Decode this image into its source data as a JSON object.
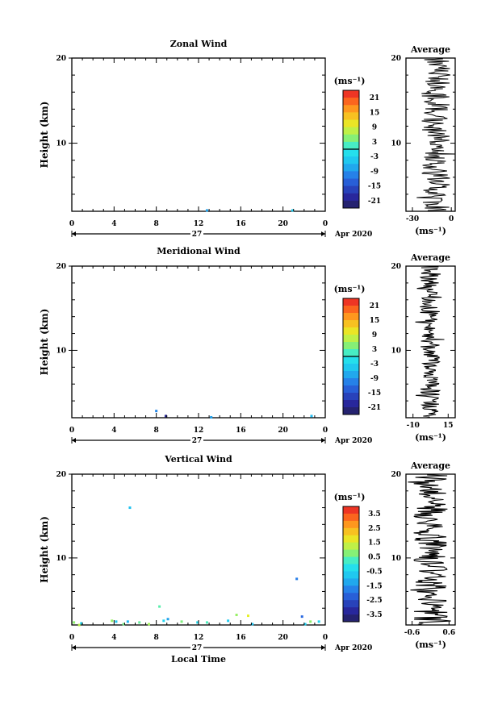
{
  "chart_data": [
    {
      "type": "heatmap",
      "title": "Zonal Wind",
      "ylabel": "Height (km)",
      "xlabel": "",
      "ylim": [
        2,
        20
      ],
      "xlim": [
        0,
        24
      ],
      "x_ticks": [
        "0",
        "4",
        "8",
        "12",
        "16",
        "20",
        "0"
      ],
      "y_ticks": [
        "10",
        "20"
      ],
      "day_label": "27",
      "date_label": "Apr 2020",
      "colorbar": {
        "unit": "(ms⁻¹)",
        "ticks": [
          "21",
          "15",
          "9",
          "3",
          "-3",
          "-9",
          "-15",
          "-21"
        ],
        "range": [
          -24,
          24
        ],
        "zero_line": true
      },
      "cells": [
        {
          "t": 12.8,
          "h": 2.1,
          "v": -8
        },
        {
          "t": 20.9,
          "h": 2.1,
          "v": -4
        }
      ],
      "profile": {
        "title": "Average",
        "x_ticks": [
          "-30",
          "0"
        ],
        "xlim": [
          -35,
          3
        ],
        "xlabel": "(ms⁻¹)",
        "y_ticks": [
          "10",
          "20"
        ],
        "ylim": [
          2,
          20
        ],
        "mean": -12,
        "amplitude": 11
      }
    },
    {
      "type": "heatmap",
      "title": "Meridional Wind",
      "ylabel": "Height (km)",
      "xlabel": "",
      "ylim": [
        2,
        20
      ],
      "xlim": [
        0,
        24
      ],
      "x_ticks": [
        "0",
        "4",
        "8",
        "12",
        "16",
        "20",
        "0"
      ],
      "y_ticks": [
        "10",
        "20"
      ],
      "day_label": "27",
      "date_label": "Apr 2020",
      "colorbar": {
        "unit": "(ms⁻¹)",
        "ticks": [
          "21",
          "15",
          "9",
          "3",
          "-3",
          "-9",
          "-15",
          "-21"
        ],
        "range": [
          -24,
          24
        ],
        "zero_line": true
      },
      "cells": [
        {
          "t": 8.0,
          "h": 2.8,
          "v": -10
        },
        {
          "t": 8.9,
          "h": 2.2,
          "v": -20
        },
        {
          "t": 13.2,
          "h": 2.05,
          "v": -8
        },
        {
          "t": 22.7,
          "h": 2.2,
          "v": -6
        }
      ],
      "profile": {
        "title": "Average",
        "x_ticks": [
          "-10",
          "15"
        ],
        "xlim": [
          -15,
          20
        ],
        "xlabel": "(ms⁻¹)",
        "y_ticks": [
          "10",
          "20"
        ],
        "ylim": [
          2,
          20
        ],
        "mean": 2,
        "amplitude": 7
      }
    },
    {
      "type": "heatmap",
      "title": "Vertical Wind",
      "ylabel": "Height (km)",
      "xlabel": "Local Time",
      "ylim": [
        2,
        20
      ],
      "xlim": [
        0,
        24
      ],
      "x_ticks": [
        "0",
        "4",
        "8",
        "12",
        "16",
        "20",
        "0"
      ],
      "y_ticks": [
        "10",
        "20"
      ],
      "day_label": "27",
      "date_label": "Apr 2020",
      "colorbar": {
        "unit": "(ms⁻¹)",
        "ticks": [
          "3.5",
          "2.5",
          "1.5",
          "0.5",
          "-0.5",
          "-1.5",
          "-2.5",
          "-3.5"
        ],
        "range": [
          -4,
          4
        ],
        "zero_line": false
      },
      "cells": [
        {
          "t": 0.2,
          "h": 2.3,
          "v": 0.8
        },
        {
          "t": 0.7,
          "h": 2.0,
          "v": 1.2
        },
        {
          "t": 0.9,
          "h": 2.2,
          "v": -0.6
        },
        {
          "t": 3.8,
          "h": 2.5,
          "v": 0.9
        },
        {
          "t": 4.2,
          "h": 2.4,
          "v": -0.8
        },
        {
          "t": 4.9,
          "h": 2.1,
          "v": 0.6
        },
        {
          "t": 5.3,
          "h": 2.4,
          "v": -1.1
        },
        {
          "t": 5.5,
          "h": 16.0,
          "v": -0.9
        },
        {
          "t": 6.4,
          "h": 2.3,
          "v": 0.5
        },
        {
          "t": 7.3,
          "h": 2.1,
          "v": 1.0
        },
        {
          "t": 8.3,
          "h": 4.2,
          "v": 0.4
        },
        {
          "t": 8.7,
          "h": 2.5,
          "v": -0.5
        },
        {
          "t": 9.1,
          "h": 2.7,
          "v": -1.3
        },
        {
          "t": 10.4,
          "h": 2.4,
          "v": 0.7
        },
        {
          "t": 11.9,
          "h": 2.3,
          "v": -0.4
        },
        {
          "t": 12.8,
          "h": 2.3,
          "v": 0.3
        },
        {
          "t": 14.8,
          "h": 2.5,
          "v": -0.7
        },
        {
          "t": 15.6,
          "h": 3.2,
          "v": 0.9
        },
        {
          "t": 16.7,
          "h": 3.1,
          "v": 1.6
        },
        {
          "t": 17.1,
          "h": 2.1,
          "v": -0.9
        },
        {
          "t": 21.3,
          "h": 7.5,
          "v": -1.8
        },
        {
          "t": 21.8,
          "h": 3.0,
          "v": -2.1
        },
        {
          "t": 22.1,
          "h": 2.1,
          "v": -0.6
        },
        {
          "t": 22.6,
          "h": 2.4,
          "v": 0.8
        },
        {
          "t": 23.4,
          "h": 2.4,
          "v": -0.5
        }
      ],
      "profile": {
        "title": "Average",
        "x_ticks": [
          "-0.6",
          "0.6"
        ],
        "xlim": [
          -0.8,
          0.8
        ],
        "xlabel": "(ms⁻¹)",
        "y_ticks": [
          "10",
          "20"
        ],
        "ylim": [
          2,
          20
        ],
        "mean": 0.0,
        "amplitude": 0.55
      }
    }
  ]
}
